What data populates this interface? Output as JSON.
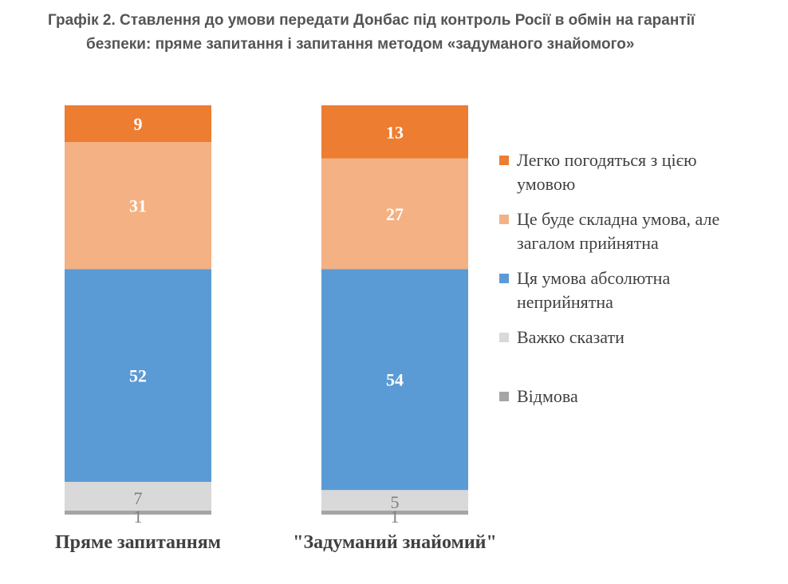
{
  "title": {
    "line1": "Графік 2. Ставлення до умови передати Донбас під контроль Росії в обмін на гарантії",
    "line2": "безпеки: пряме запитання і запитання методом «задуманого знайомого»"
  },
  "colors": {
    "easy": "#ed7d31",
    "hard_acceptable": "#f4b183",
    "unacceptable": "#5b9bd5",
    "hard_to_say": "#d9d9d9",
    "refusal": "#a5a5a5"
  },
  "legend": [
    {
      "label": "Легко погодяться з цією умовою",
      "color": "#ed7d31"
    },
    {
      "label": "Це буде складна умова, але загалом прийнятна",
      "color": "#f4b183"
    },
    {
      "label": "Ця умова абсолютна неприйнятна",
      "color": "#5b9bd5"
    },
    {
      "label": "Важко сказати",
      "color": "#d9d9d9"
    },
    {
      "label": "Відмова",
      "color": "#a5a5a5"
    }
  ],
  "chart_data": {
    "type": "bar",
    "stacked": true,
    "categories": [
      "Пряме запитанням",
      "\"Задуманий знайомий\""
    ],
    "series": [
      {
        "name": "Відмова",
        "values": [
          1,
          1
        ]
      },
      {
        "name": "Важко сказати",
        "values": [
          7,
          5
        ]
      },
      {
        "name": "Ця умова абсолютна неприйнятна",
        "values": [
          52,
          54
        ]
      },
      {
        "name": "Це буде складна умова, але загалом прийнятна",
        "values": [
          31,
          27
        ]
      },
      {
        "name": "Легко погодяться з цією умовою",
        "values": [
          9,
          13
        ]
      }
    ],
    "ylim": [
      0,
      100
    ],
    "legend_position": "right",
    "grid": false
  }
}
